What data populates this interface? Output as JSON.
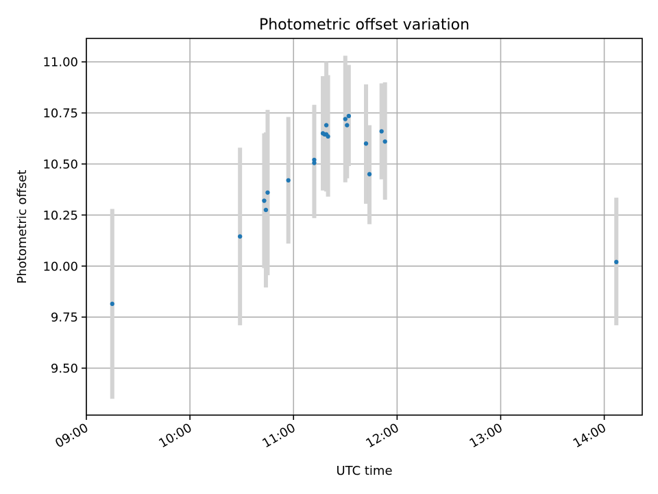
{
  "chart_data": {
    "type": "scatter",
    "title": "Photometric offset variation",
    "xlabel": "UTC time",
    "ylabel": "Photometric offset",
    "x_axis_type": "time",
    "xlim": [
      "09:00",
      "14:22"
    ],
    "ylim": [
      9.27,
      11.115
    ],
    "xticks": [
      "09:00",
      "10:00",
      "11:00",
      "12:00",
      "13:00",
      "14:00"
    ],
    "yticks": [
      9.5,
      9.75,
      10.0,
      10.25,
      10.5,
      10.75,
      11.0
    ],
    "ytick_labels": [
      "9.50",
      "9.75",
      "10.00",
      "10.25",
      "10.50",
      "10.75",
      "11.00"
    ],
    "grid": true,
    "legend": "none",
    "colors": {
      "marker": "#1f77b4",
      "errorbar": "#d3d3d3"
    },
    "series": [
      {
        "points": [
          {
            "x": "09:15",
            "y": 9.815,
            "lo": 9.35,
            "hi": 10.28
          },
          {
            "x": "10:29",
            "y": 10.145,
            "lo": 9.71,
            "hi": 10.58
          },
          {
            "x": "10:43",
            "y": 10.32,
            "lo": 9.99,
            "hi": 10.65
          },
          {
            "x": "10:44",
            "y": 10.275,
            "lo": 9.895,
            "hi": 10.655
          },
          {
            "x": "10:45",
            "y": 10.36,
            "lo": 9.955,
            "hi": 10.765
          },
          {
            "x": "10:57",
            "y": 10.42,
            "lo": 10.11,
            "hi": 10.73
          },
          {
            "x": "11:12",
            "y": 10.505,
            "lo": 10.235,
            "hi": 10.78
          },
          {
            "x": "11:12",
            "y": 10.52,
            "lo": 10.24,
            "hi": 10.79
          },
          {
            "x": "11:17",
            "y": 10.65,
            "lo": 10.37,
            "hi": 10.93
          },
          {
            "x": "11:18",
            "y": 10.645,
            "lo": 10.37,
            "hi": 10.92
          },
          {
            "x": "11:19",
            "y": 10.645,
            "lo": 10.365,
            "hi": 10.92
          },
          {
            "x": "11:19",
            "y": 10.69,
            "lo": 10.38,
            "hi": 11.0
          },
          {
            "x": "11:20",
            "y": 10.635,
            "lo": 10.34,
            "hi": 10.935
          },
          {
            "x": "11:30",
            "y": 10.72,
            "lo": 10.41,
            "hi": 11.03
          },
          {
            "x": "11:31",
            "y": 10.69,
            "lo": 10.43,
            "hi": 10.96
          },
          {
            "x": "11:32",
            "y": 10.735,
            "lo": 10.49,
            "hi": 10.985
          },
          {
            "x": "11:42",
            "y": 10.6,
            "lo": 10.305,
            "hi": 10.89
          },
          {
            "x": "11:44",
            "y": 10.45,
            "lo": 10.205,
            "hi": 10.69
          },
          {
            "x": "11:51",
            "y": 10.66,
            "lo": 10.425,
            "hi": 10.895
          },
          {
            "x": "11:53",
            "y": 10.61,
            "lo": 10.325,
            "hi": 10.9
          },
          {
            "x": "14:07",
            "y": 10.02,
            "lo": 9.71,
            "hi": 10.335
          }
        ]
      }
    ]
  }
}
